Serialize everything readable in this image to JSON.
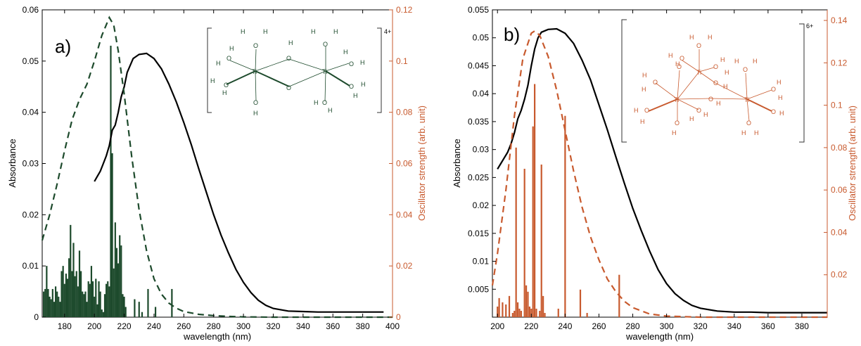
{
  "colors": {
    "green": "#1d4a2c",
    "orange": "#c85a2e",
    "black": "#000000"
  },
  "chart_data": [
    {
      "type": "line",
      "panel_label": "a)",
      "xlabel": "wavelength (nm)",
      "ylabel_left": "Absorbance",
      "ylabel_right": "Oscillator strength (arb. unit)",
      "xlim": [
        165,
        400
      ],
      "ylim_left": [
        0,
        0.06
      ],
      "ylim_right": [
        0,
        0.12
      ],
      "x_ticks": [
        "180",
        "200",
        "220",
        "240",
        "260",
        "280",
        "300",
        "320",
        "340",
        "360",
        "380",
        "400"
      ],
      "y_left_ticks": [
        "0",
        "0.01",
        "0.02",
        "0.03",
        "0.04",
        "0.05",
        "0.06"
      ],
      "y_right_ticks": [
        "0",
        "0.02",
        "0.04",
        "0.06",
        "0.08",
        "0.1",
        "0.12"
      ],
      "charge_label": "4+",
      "sticks_color": "#1d4a2c",
      "series": [
        {
          "style": "solid",
          "axis": "left",
          "color": "#000000",
          "x": [
            200,
            202,
            204,
            206,
            208,
            210,
            212,
            214,
            216,
            218,
            220,
            222,
            226,
            230,
            235,
            240,
            245,
            250,
            255,
            260,
            265,
            270,
            275,
            280,
            285,
            290,
            295,
            300,
            305,
            310,
            315,
            320,
            330,
            340,
            350,
            360,
            370,
            380,
            390,
            394
          ],
          "y": [
            0.0265,
            0.0275,
            0.0285,
            0.03,
            0.0315,
            0.0335,
            0.0365,
            0.0375,
            0.04,
            0.043,
            0.045,
            0.0478,
            0.0505,
            0.0513,
            0.0515,
            0.0505,
            0.0485,
            0.0455,
            0.042,
            0.038,
            0.0337,
            0.029,
            0.0245,
            0.02,
            0.016,
            0.0125,
            0.0093,
            0.0068,
            0.0048,
            0.0033,
            0.0023,
            0.0017,
            0.0012,
            0.0011,
            0.001,
            0.001,
            0.001,
            0.001,
            0.001,
            0.001
          ]
        },
        {
          "style": "dashed",
          "axis": "right",
          "color": "#1d4a2c",
          "x": [
            165,
            170,
            175,
            180,
            185,
            190,
            195,
            200,
            205,
            210,
            213,
            216,
            220,
            225,
            230,
            235,
            240,
            245,
            250,
            255,
            260,
            270,
            280,
            290,
            300,
            320,
            340,
            360,
            380,
            400
          ],
          "y": [
            0.03,
            0.04,
            0.052,
            0.065,
            0.077,
            0.085,
            0.091,
            0.1,
            0.11,
            0.117,
            0.114,
            0.104,
            0.087,
            0.063,
            0.042,
            0.026,
            0.015,
            0.009,
            0.0055,
            0.0035,
            0.0022,
            0.0011,
            0.0006,
            0.0003,
            0.0001,
            0,
            0,
            0,
            0,
            0
          ]
        }
      ],
      "sticks": {
        "axis": "right",
        "x": [
          166,
          167,
          168,
          169,
          170,
          171,
          172,
          173,
          174,
          175,
          176,
          177,
          178,
          179,
          180,
          181,
          182,
          183,
          184,
          185,
          186,
          187,
          188,
          189,
          190,
          191,
          192,
          193,
          194,
          195,
          196,
          197,
          198,
          199,
          200,
          201,
          202,
          203,
          204,
          205,
          206,
          207,
          208,
          209,
          210,
          211,
          212,
          213,
          214,
          215,
          216,
          217,
          218,
          219,
          220,
          221,
          227,
          230,
          232,
          236,
          241,
          252
        ],
        "y": [
          0.01,
          0.011,
          0.02,
          0.011,
          0.008,
          0.007,
          0.011,
          0.006,
          0.012,
          0.01,
          0.008,
          0.006,
          0.018,
          0.02,
          0.013,
          0.017,
          0.015,
          0.023,
          0.036,
          0.018,
          0.029,
          0.016,
          0.018,
          0.012,
          0.026,
          0.018,
          0.01,
          0.009,
          0.01,
          0.006,
          0.014,
          0.013,
          0.02,
          0.014,
          0.008,
          0.015,
          0.005,
          0.014,
          0.01,
          0.003,
          0.002,
          0.009,
          0.013,
          0.014,
          0.012,
          0.106,
          0.064,
          0.019,
          0.037,
          0.027,
          0.021,
          0.032,
          0.028,
          0.009,
          0.008,
          0.004,
          0.007,
          0.006,
          0.002,
          0.011,
          0.004,
          0.011
        ]
      }
    },
    {
      "type": "line",
      "panel_label": "b)",
      "xlabel": "wavelength (nm)",
      "ylabel_left": "Absorbance",
      "ylabel_right": "Oscillator strength (arb. unit)",
      "xlim": [
        197,
        395
      ],
      "ylim_left": [
        0,
        0.055
      ],
      "ylim_right": [
        0,
        0.145
      ],
      "x_ticks": [
        "200",
        "220",
        "240",
        "260",
        "280",
        "300",
        "320",
        "340",
        "360",
        "380"
      ],
      "y_left_ticks": [
        "0.005",
        "0.01",
        "0.015",
        "0.02",
        "0.025",
        "0.03",
        "0.035",
        "0.04",
        "0.045",
        "0.05",
        "0.055"
      ],
      "y_right_ticks": [
        "0.02",
        "0.04",
        "0.06",
        "0.08",
        "0.1",
        "0.12",
        "0.14"
      ],
      "charge_label": "6+",
      "sticks_color": "#c85a2e",
      "series": [
        {
          "style": "solid",
          "axis": "left",
          "color": "#000000",
          "x": [
            200,
            202,
            204,
            206,
            208,
            210,
            212,
            214,
            216,
            218,
            220,
            222,
            224,
            226,
            230,
            235,
            240,
            245,
            250,
            255,
            260,
            265,
            270,
            275,
            280,
            285,
            290,
            295,
            300,
            305,
            310,
            315,
            320,
            330,
            340,
            350,
            360,
            370,
            380,
            390,
            395
          ],
          "y": [
            0.0265,
            0.0275,
            0.0285,
            0.0295,
            0.031,
            0.033,
            0.0355,
            0.037,
            0.039,
            0.0415,
            0.045,
            0.048,
            0.05,
            0.051,
            0.0515,
            0.0516,
            0.0508,
            0.049,
            0.046,
            0.0425,
            0.038,
            0.0335,
            0.0287,
            0.024,
            0.0195,
            0.0155,
            0.0118,
            0.0085,
            0.006,
            0.0042,
            0.003,
            0.0021,
            0.0016,
            0.0011,
            0.0009,
            0.0009,
            0.0008,
            0.0008,
            0.0008,
            0.0008,
            0.0008
          ]
        },
        {
          "style": "dashed",
          "axis": "right",
          "color": "#c85a2e",
          "x": [
            197,
            200,
            205,
            210,
            215,
            220,
            222,
            225,
            230,
            235,
            240,
            245,
            250,
            255,
            260,
            265,
            270,
            275,
            280,
            290,
            300,
            320,
            340,
            360,
            380,
            395
          ],
          "y": [
            0.015,
            0.03,
            0.06,
            0.095,
            0.122,
            0.134,
            0.135,
            0.133,
            0.123,
            0.107,
            0.088,
            0.069,
            0.052,
            0.038,
            0.027,
            0.018,
            0.012,
            0.0075,
            0.0045,
            0.0015,
            0.0005,
            0,
            0,
            0,
            0,
            0
          ]
        }
      ],
      "sticks": {
        "axis": "right",
        "x": [
          200,
          201,
          203,
          205,
          207,
          209,
          210,
          211,
          212,
          213,
          214,
          216,
          217,
          218,
          219,
          220,
          221,
          222,
          223,
          225,
          226,
          227,
          228,
          236,
          240,
          249,
          253,
          272
        ],
        "y": [
          0.005,
          0.009,
          0.007,
          0.006,
          0.01,
          0.002,
          0.003,
          0.08,
          0.007,
          0.004,
          0.003,
          0.07,
          0.015,
          0.012,
          0.005,
          0.004,
          0.09,
          0.11,
          0.004,
          0.003,
          0.072,
          0.01,
          0.002,
          0.004,
          0.095,
          0.013,
          0.002,
          0.02
        ]
      }
    }
  ],
  "molecules": [
    {
      "ti": [
        "Ti",
        "Ti"
      ],
      "oxygen": [
        "O",
        "O",
        "O",
        "O",
        "O",
        "O",
        "O",
        "O",
        "O",
        "O"
      ],
      "hydrogen": [
        "H",
        "H",
        "H",
        "H",
        "H",
        "H",
        "H",
        "H",
        "H",
        "H",
        "H",
        "H",
        "H",
        "H",
        "H",
        "H"
      ]
    },
    {
      "ti": [
        "Ti",
        "Ti",
        "Ti"
      ],
      "oxygen": [
        "O",
        "O",
        "O",
        "O",
        "O",
        "O",
        "O",
        "O",
        "O",
        "O",
        "O",
        "O",
        "O",
        "O"
      ],
      "hydrogen": [
        "H",
        "H",
        "H",
        "H",
        "H",
        "H",
        "H",
        "H",
        "H",
        "H",
        "H",
        "H",
        "H",
        "H",
        "H",
        "H",
        "H",
        "H",
        "H",
        "H",
        "H",
        "H"
      ]
    }
  ]
}
